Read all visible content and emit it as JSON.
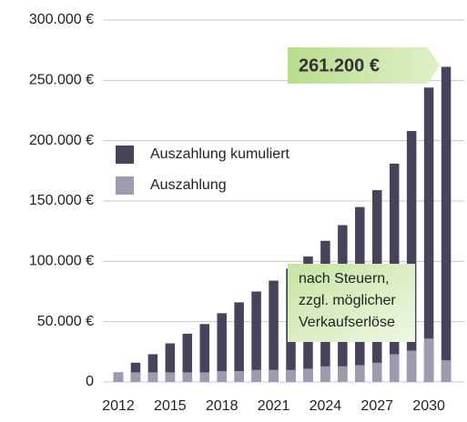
{
  "chart_data": {
    "type": "bar",
    "categories": [
      "2012",
      null,
      null,
      "2015",
      null,
      null,
      "2018",
      null,
      null,
      "2021",
      null,
      null,
      "2024",
      null,
      null,
      "2027",
      null,
      null,
      "2030",
      null
    ],
    "series": [
      {
        "name": "Auszahlung kumuliert",
        "color": "#46435a",
        "values": [
          8000,
          16000,
          23000,
          32000,
          40000,
          48000,
          57000,
          66000,
          75000,
          84000,
          94000,
          104000,
          117000,
          130000,
          145000,
          159000,
          181000,
          208000,
          244000,
          261200
        ]
      },
      {
        "name": "Auszahlung",
        "color": "#9e9bb0",
        "values": [
          8000,
          8000,
          8000,
          8000,
          8000,
          8000,
          9000,
          9000,
          10000,
          10000,
          10000,
          11000,
          13000,
          13000,
          14000,
          16000,
          23000,
          26000,
          36000,
          18000
        ]
      }
    ],
    "ylim": [
      0,
      300000
    ],
    "yticks": [
      0,
      {
        "value": 50000,
        "label": "50.000 €"
      },
      {
        "value": 100000,
        "label": "100.000 €"
      },
      {
        "value": 150000,
        "label": "150.000 €"
      },
      {
        "value": 200000,
        "label": "200.000 €"
      },
      {
        "value": 250000,
        "label": "250.000 €"
      },
      {
        "value": 300000,
        "label": "300.000 €"
      }
    ],
    "grid": true,
    "legend": "upper-left",
    "annotations": [
      "261.200 €",
      "nach Steuern,",
      "zzgl. möglicher",
      "Verkaufserlöse"
    ]
  }
}
